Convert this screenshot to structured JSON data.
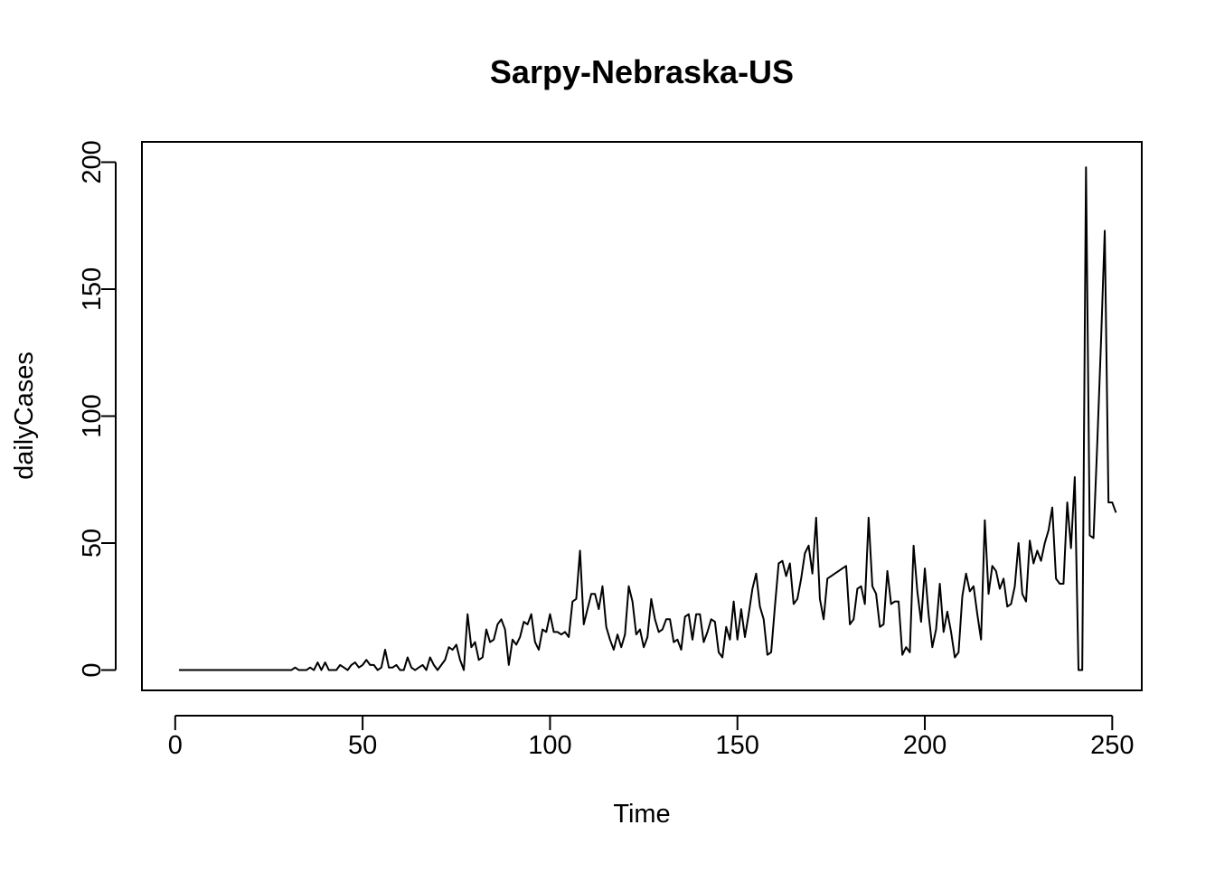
{
  "chart_data": {
    "type": "line",
    "title": "Sarpy-Nebraska-US",
    "xlabel": "Time",
    "ylabel": "dailyCases",
    "xlim": [
      1,
      248
    ],
    "ylim": [
      0,
      200
    ],
    "xticks": [
      0,
      50,
      100,
      150,
      200,
      250
    ],
    "yticks": [
      0,
      50,
      100,
      150,
      200
    ],
    "xtick_labels": [
      "0",
      "50",
      "100",
      "150",
      "200",
      "250"
    ],
    "ytick_labels": [
      "0",
      "50",
      "100",
      "150",
      "200"
    ],
    "grid": false,
    "legend": "none",
    "line_color": "#000000",
    "series": [
      {
        "x_start": 1,
        "values": [
          0,
          0,
          0,
          0,
          0,
          0,
          0,
          0,
          0,
          0,
          0,
          0,
          0,
          0,
          0,
          0,
          0,
          0,
          0,
          0,
          0,
          0,
          0,
          0,
          0,
          0,
          0,
          0,
          0,
          0,
          0,
          1,
          0,
          0,
          0,
          1,
          0,
          3,
          0,
          3,
          0,
          0,
          0,
          2,
          1,
          0,
          2,
          3,
          1,
          2,
          4,
          2,
          2,
          0,
          1,
          8,
          1,
          1,
          2,
          0,
          0,
          5,
          1,
          0,
          1,
          2,
          0,
          5,
          2,
          0,
          2,
          4,
          9,
          8,
          10,
          4,
          0,
          22,
          9,
          11,
          4,
          5,
          16,
          11,
          12,
          18,
          20,
          16,
          2,
          12,
          10,
          13,
          19,
          18,
          22,
          11,
          8,
          16,
          15,
          22,
          15,
          15,
          14,
          15,
          13,
          27,
          28,
          47,
          18,
          24,
          30,
          30,
          24,
          33,
          17,
          12,
          8,
          14,
          9,
          14,
          33,
          27,
          14,
          16,
          9,
          13,
          28,
          20,
          15,
          16,
          20,
          20,
          11,
          12,
          8,
          21,
          22,
          12,
          22,
          22,
          11,
          15,
          20,
          19,
          7,
          5,
          17,
          12,
          27,
          12,
          24,
          13,
          22,
          32,
          38,
          25,
          20,
          6,
          7,
          25,
          42,
          43,
          37,
          42,
          26,
          28,
          36,
          46,
          49,
          38,
          60,
          28,
          20,
          36,
          37,
          38,
          39,
          40,
          41,
          18,
          20,
          32,
          33,
          26,
          60,
          33,
          30,
          17,
          18,
          39,
          26,
          27,
          27,
          6,
          9,
          7,
          49,
          31,
          19,
          40,
          22,
          9,
          16,
          34,
          15,
          23,
          15,
          5,
          7,
          29,
          38,
          31,
          33,
          22,
          12,
          59,
          30,
          41,
          39,
          32,
          36,
          25,
          26,
          33,
          50,
          30,
          27,
          51,
          42,
          47,
          43,
          50,
          55,
          64,
          36,
          34,
          34,
          66,
          48,
          76,
          0,
          0,
          198,
          53,
          52,
          89,
          129,
          173,
          66,
          66,
          62
        ]
      }
    ]
  }
}
